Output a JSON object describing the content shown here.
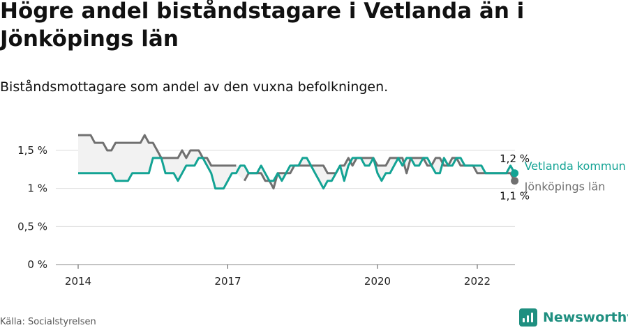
{
  "title": "Högre andel biståndstagare i Vetlanda än i Jönköpings län",
  "subtitle": "Biståndsmottagare som andel av den vuxna befolkningen.",
  "source": "Källa: Socialstyrelsen",
  "brand": {
    "name": "Newsworthy"
  },
  "colors": {
    "vetlanda": "#13a394",
    "lan": "#707070",
    "grid": "#dddddd",
    "band": "#f2f2f2"
  },
  "chart_data": {
    "type": "line",
    "title": "Högre andel biståndstagare i Vetlanda än i Jönköpings län",
    "subtitle": "Biståndsmottagare som andel av den vuxna befolkningen.",
    "y_ticks": [
      0,
      0.5,
      1,
      1.5
    ],
    "y_tick_labels": [
      "0 %",
      "0,5 %",
      "1 %",
      "1,5 %"
    ],
    "ylim": [
      0,
      1.8
    ],
    "x_ticks": [
      2014,
      2017,
      2020,
      2022
    ],
    "x_tick_labels": [
      "2014",
      "2017",
      "2020",
      "2022"
    ],
    "xlim": [
      2014,
      2022.4
    ],
    "grid": true,
    "series": [
      {
        "name": "Vetlanda kommun",
        "end_label": "1,2 %",
        "x_start": 2014,
        "step": 0.08333,
        "values": [
          1.2,
          1.2,
          1.2,
          1.2,
          1.2,
          1.2,
          1.2,
          1.2,
          1.2,
          1.1,
          1.1,
          1.1,
          1.1,
          1.2,
          1.2,
          1.2,
          1.2,
          1.2,
          1.4,
          1.4,
          1.4,
          1.2,
          1.2,
          1.2,
          1.1,
          1.2,
          1.3,
          1.3,
          1.3,
          1.4,
          1.4,
          1.3,
          1.2,
          1.0,
          1.0,
          1.0,
          1.1,
          1.2,
          1.2,
          1.3,
          1.3,
          1.2,
          1.2,
          1.2,
          1.3,
          1.2,
          1.1,
          1.1,
          1.2,
          1.1,
          1.2,
          1.3,
          1.3,
          1.3,
          1.4,
          1.4,
          1.3,
          1.2,
          1.1,
          1.0,
          1.1,
          1.1,
          1.2,
          1.3,
          1.1,
          1.3,
          1.4,
          1.4,
          1.4,
          1.3,
          1.3,
          1.4,
          1.2,
          1.1,
          1.2,
          1.2,
          1.3,
          1.4,
          1.3,
          1.4,
          1.4,
          1.3,
          1.3,
          1.4,
          1.4,
          1.3,
          1.2,
          1.2,
          1.4,
          1.3,
          1.3,
          1.4,
          1.4,
          1.3,
          1.3,
          1.3,
          1.3,
          1.3,
          1.2,
          1.2,
          1.2,
          1.2,
          1.2,
          1.2,
          1.3,
          1.2
        ]
      },
      {
        "name": "Jönköpings län",
        "end_label": "1,1 %",
        "x_start": 2014,
        "step": 0.08333,
        "values": [
          1.7,
          1.7,
          1.7,
          1.7,
          1.6,
          1.6,
          1.6,
          1.5,
          1.5,
          1.6,
          1.6,
          1.6,
          1.6,
          1.6,
          1.6,
          1.6,
          1.7,
          1.6,
          1.6,
          1.5,
          1.4,
          1.4,
          1.4,
          1.4,
          1.4,
          1.5,
          1.4,
          1.5,
          1.5,
          1.5,
          1.4,
          1.4,
          1.3,
          1.3,
          1.3,
          1.3,
          1.3,
          1.3,
          1.3,
          null,
          1.1,
          1.2,
          1.2,
          1.2,
          1.2,
          1.1,
          1.1,
          1.0,
          1.2,
          1.2,
          1.2,
          1.2,
          1.3,
          1.3,
          1.3,
          1.3,
          1.3,
          1.3,
          1.3,
          1.3,
          1.2,
          1.2,
          1.2,
          1.3,
          1.3,
          1.4,
          1.3,
          1.4,
          1.4,
          1.4,
          1.4,
          1.4,
          1.3,
          1.3,
          1.3,
          1.4,
          1.4,
          1.4,
          1.4,
          1.2,
          1.4,
          1.4,
          1.4,
          1.4,
          1.3,
          1.3,
          1.4,
          1.4,
          1.3,
          1.3,
          1.4,
          1.4,
          1.3,
          1.3,
          1.3,
          1.3,
          1.2,
          1.2,
          1.2,
          1.2,
          1.2,
          1.2,
          1.2,
          1.2,
          1.2,
          1.1
        ]
      }
    ]
  }
}
